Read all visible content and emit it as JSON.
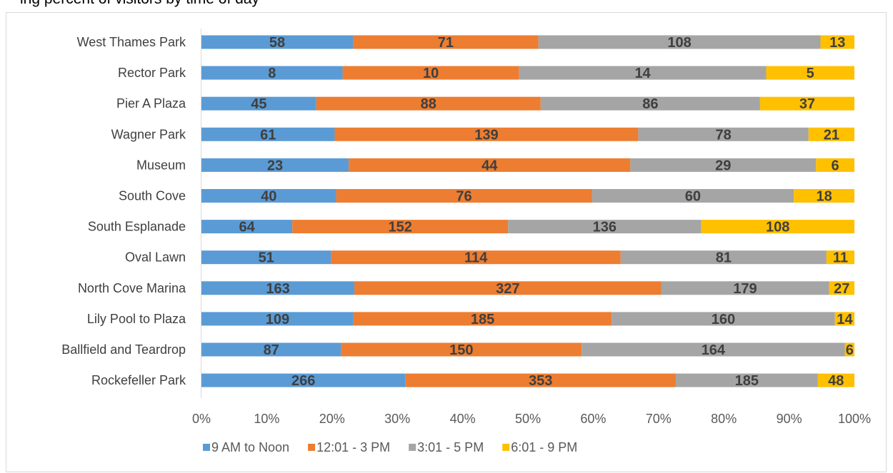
{
  "header_fragment": "ing percent of visitors by time of day",
  "chart_data": {
    "type": "bar",
    "orientation": "horizontal",
    "stacked": "percent",
    "categories": [
      "West Thames Park",
      "Rector Park",
      "Pier A Plaza",
      "Wagner Park",
      "Museum",
      "South Cove",
      "South Esplanade",
      "Oval Lawn",
      "North Cove Marina",
      "Lily Pool to Plaza",
      "Ballfield and Teardrop",
      "Rockefeller Park"
    ],
    "series": [
      {
        "name": "9 AM to Noon",
        "color": "#5b9bd5",
        "values": [
          58,
          8,
          45,
          61,
          23,
          40,
          64,
          51,
          163,
          109,
          87,
          266
        ]
      },
      {
        "name": "12:01 - 3 PM",
        "color": "#ed7d31",
        "values": [
          71,
          10,
          88,
          139,
          44,
          76,
          152,
          114,
          327,
          185,
          150,
          353
        ]
      },
      {
        "name": "3:01 - 5 PM",
        "color": "#a5a5a5",
        "values": [
          108,
          14,
          86,
          78,
          29,
          60,
          136,
          81,
          179,
          160,
          164,
          185
        ]
      },
      {
        "name": "6:01 - 9 PM",
        "color": "#ffc000",
        "values": [
          13,
          5,
          37,
          21,
          6,
          18,
          108,
          11,
          27,
          14,
          6,
          48
        ]
      }
    ],
    "x_ticks": [
      "0%",
      "10%",
      "20%",
      "30%",
      "40%",
      "50%",
      "60%",
      "70%",
      "80%",
      "90%",
      "100%"
    ],
    "xlim": [
      0,
      100
    ],
    "grid": false,
    "legend_position": "bottom"
  }
}
